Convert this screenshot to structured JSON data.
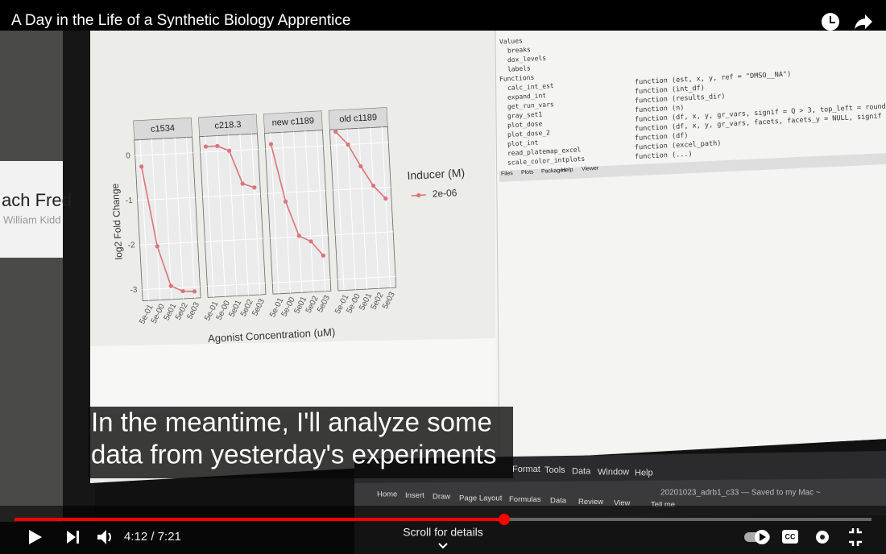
{
  "video": {
    "title": "A Day in the Life of a Synthetic Biology Apprentice",
    "captions": [
      "In the meantime, I'll analyze some",
      "data from yesterday's experiments"
    ],
    "time_display": "4:12 / 7:21",
    "scroll_hint": "Scroll for details"
  },
  "frame": {
    "name_tag": [
      "ach Fred",
      "William Kidd"
    ],
    "environment": [
      "Values",
      "breaks",
      "dox_levels",
      "labels",
      "Functions",
      "calc_int_est",
      "expand_int",
      "get_run_vars",
      "gray_set1",
      "plot_dose",
      "plot_dose_2",
      "plot_int",
      "read_platemap_excel",
      "scale_color_intplots"
    ],
    "environment_values": [
      null,
      null,
      null,
      null,
      null,
      "function (est, x, y, ref = \"DMSO__NA\")",
      "function (int_df)",
      "function (results_dir)",
      "function (n)",
      "function (df, x, y, gr_vars, signif = Q > 3, top_left = round(ma",
      "function (df, x, y, gr_vars, facets, facets_y = NULL, signif = Q",
      "function (df)",
      "function (excel_path)",
      "function (...)"
    ],
    "pane_tabs": [
      "Files",
      "Plots",
      "Packages",
      "Help",
      "Viewer"
    ],
    "excel_menu": [
      "Format",
      "Tools",
      "Data",
      "Window",
      "Help"
    ],
    "excel_ribbon": [
      "Home",
      "Insert",
      "Draw",
      "Page Layout",
      "Formulas",
      "Data",
      "Review",
      "View",
      "Tell me"
    ],
    "excel_file": "20201023_adrb1_c33 — Saved to my Mac ~"
  },
  "chart_data": {
    "type": "line",
    "ylabel": "log2 Fold Change",
    "xlabel": "Agonist Concentration (uM)",
    "legend_title": "Inducer (M)",
    "panels": [
      "c1534",
      "c218.3",
      "new c1189",
      "old c1189"
    ],
    "categories": [
      "5e-01",
      "5e-00",
      "5e01",
      "5e02",
      "5e03"
    ],
    "ylim": [
      -3.25,
      0.35
    ],
    "yticks": [
      0,
      -1,
      -2,
      -3
    ],
    "grid": true,
    "series": [
      {
        "name": "2e-06",
        "color": "#db7479",
        "values": [
          [
            -0.25,
            -2.05,
            -2.95,
            -3.08,
            -3.1
          ],
          [
            0.12,
            0.12,
            0.0,
            -0.75,
            -0.85
          ],
          [
            0.1,
            -1.2,
            -1.98,
            -2.12,
            -2.45
          ],
          [
            0.3,
            0.0,
            -0.5,
            -0.95,
            -1.25
          ]
        ]
      }
    ]
  }
}
